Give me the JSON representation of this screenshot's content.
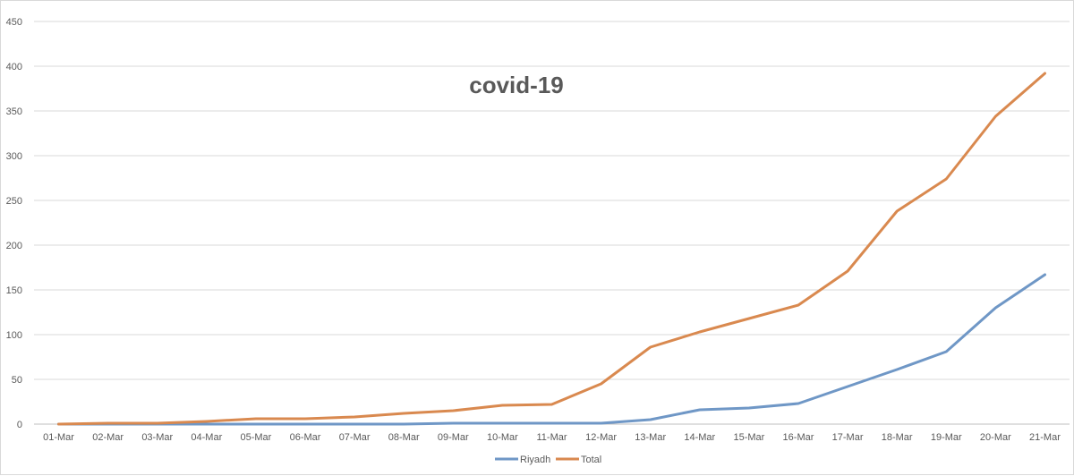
{
  "chart_data": {
    "type": "line",
    "title": "covid-19",
    "xlabel": "",
    "ylabel": "",
    "categories": [
      "01-Mar",
      "02-Mar",
      "03-Mar",
      "04-Mar",
      "05-Mar",
      "06-Mar",
      "07-Mar",
      "08-Mar",
      "09-Mar",
      "10-Mar",
      "11-Mar",
      "12-Mar",
      "13-Mar",
      "14-Mar",
      "15-Mar",
      "16-Mar",
      "17-Mar",
      "18-Mar",
      "19-Mar",
      "20-Mar",
      "21-Mar"
    ],
    "ylim": [
      0,
      450
    ],
    "yticks": [
      0,
      50,
      100,
      150,
      200,
      250,
      300,
      350,
      400,
      450
    ],
    "grid": true,
    "legend_position": "bottom",
    "series": [
      {
        "name": "Riyadh",
        "color": "#6f97c6",
        "values": [
          0,
          0,
          0,
          0,
          0,
          0,
          0,
          0,
          1,
          1,
          1,
          1,
          5,
          16,
          18,
          23,
          42,
          61,
          81,
          130,
          167
        ]
      },
      {
        "name": "Total",
        "color": "#d9894f",
        "values": [
          0,
          1,
          1,
          3,
          6,
          6,
          8,
          12,
          15,
          21,
          22,
          45,
          86,
          103,
          118,
          133,
          171,
          238,
          274,
          344,
          392
        ]
      }
    ]
  }
}
